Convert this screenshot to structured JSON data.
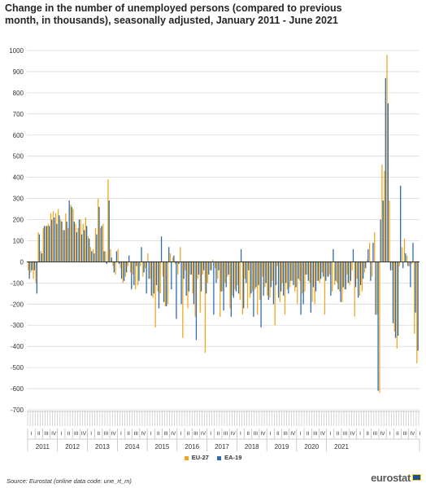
{
  "title": "Change in the number of unemployed persons (compared to previous month, in thousands), seasonally adjusted, January 2011 - June 2021",
  "source": "Source: Eurostat (online data code: une_rt_m)",
  "logo_text": "eurostat",
  "chart_data": {
    "type": "bar",
    "ylim": [
      -700,
      1000
    ],
    "yticks": [
      -700,
      -600,
      -500,
      -400,
      -300,
      -200,
      -100,
      0,
      100,
      200,
      300,
      400,
      500,
      600,
      700,
      800,
      900,
      1000
    ],
    "grid": true,
    "legend_position": "bottom",
    "years": [
      "2011",
      "2012",
      "2013",
      "2014",
      "2015",
      "2016",
      "2017",
      "2018",
      "2019",
      "2020",
      "2021"
    ],
    "quarters": [
      "I",
      "II",
      "III",
      "IV"
    ],
    "start": "2011-01",
    "series": [
      {
        "name": "EU-27",
        "color": "#f0a71f",
        "values": [
          -40,
          -50,
          -80,
          -100,
          140,
          50,
          160,
          170,
          180,
          230,
          240,
          230,
          250,
          200,
          150,
          230,
          160,
          270,
          250,
          180,
          160,
          200,
          180,
          210,
          120,
          70,
          60,
          160,
          300,
          160,
          180,
          50,
          390,
          60,
          -20,
          -60,
          60,
          -30,
          -100,
          -70,
          -20,
          -50,
          -60,
          -130,
          -110,
          -20,
          -70,
          -30,
          40,
          -80,
          -170,
          -310,
          -140,
          -150,
          -70,
          -210,
          -200,
          40,
          20,
          -10,
          -60,
          70,
          -360,
          -40,
          -220,
          -60,
          -150,
          -260,
          -80,
          -240,
          -60,
          -430,
          -100,
          -40,
          10,
          -30,
          -80,
          -260,
          -140,
          -100,
          -70,
          -220,
          -160,
          -130,
          -110,
          -180,
          -250,
          -80,
          -220,
          -170,
          -140,
          -130,
          -250,
          -180,
          -70,
          -120,
          -160,
          -170,
          -90,
          -300,
          -20,
          -190,
          -100,
          -250,
          -130,
          -120,
          -90,
          -140,
          -200,
          -90,
          -150,
          -140,
          -60,
          -100,
          -190,
          -200,
          -90,
          -100,
          -50,
          -250,
          -70,
          -60,
          -140,
          -110,
          -100,
          -140,
          -190,
          -130,
          -60,
          -110,
          -40,
          -260,
          -80,
          -160,
          -140,
          -50,
          10,
          90,
          -70,
          140,
          -250,
          -620,
          460,
          430,
          980,
          290,
          -40,
          -330,
          -410,
          -20,
          70,
          110,
          30,
          -20,
          -10,
          -340,
          -480
        ]
      },
      {
        "name": "EA-19",
        "color": "#2e6ab0",
        "values": [
          -80,
          -40,
          -40,
          -150,
          130,
          40,
          170,
          170,
          170,
          200,
          210,
          180,
          220,
          190,
          150,
          190,
          290,
          260,
          190,
          140,
          200,
          130,
          150,
          170,
          110,
          50,
          40,
          130,
          260,
          170,
          50,
          -10,
          290,
          20,
          -50,
          50,
          -10,
          -80,
          -90,
          -50,
          30,
          -130,
          -110,
          -20,
          -90,
          70,
          -50,
          -150,
          -80,
          -160,
          -150,
          -110,
          -220,
          120,
          -190,
          -210,
          70,
          -130,
          30,
          -270,
          -10,
          -200,
          -80,
          -160,
          -140,
          -60,
          -200,
          -370,
          -60,
          -140,
          -40,
          -150,
          -60,
          -40,
          -250,
          -100,
          -40,
          -140,
          -230,
          -120,
          -60,
          -260,
          -170,
          -140,
          -150,
          60,
          -220,
          -100,
          -40,
          -150,
          -260,
          -120,
          -110,
          -310,
          -160,
          -100,
          -180,
          -120,
          -200,
          -110,
          -170,
          -140,
          -160,
          -100,
          -150,
          -90,
          -110,
          -120,
          -80,
          -250,
          -200,
          -60,
          -90,
          -240,
          -120,
          -140,
          -90,
          -80,
          -70,
          -90,
          -70,
          -160,
          60,
          -90,
          -130,
          -190,
          -120,
          -130,
          -100,
          -90,
          60,
          -120,
          -170,
          -110,
          -80,
          -30,
          60,
          -90,
          90,
          -250,
          -610,
          200,
          290,
          870,
          750,
          -40,
          -290,
          -360,
          -350,
          360,
          -30,
          40,
          -20,
          -120,
          90,
          -240,
          -420
        ]
      }
    ]
  },
  "legend": [
    {
      "label": "EU-27",
      "color": "#f0a71f"
    },
    {
      "label": "EA-19",
      "color": "#2e6ab0"
    }
  ]
}
